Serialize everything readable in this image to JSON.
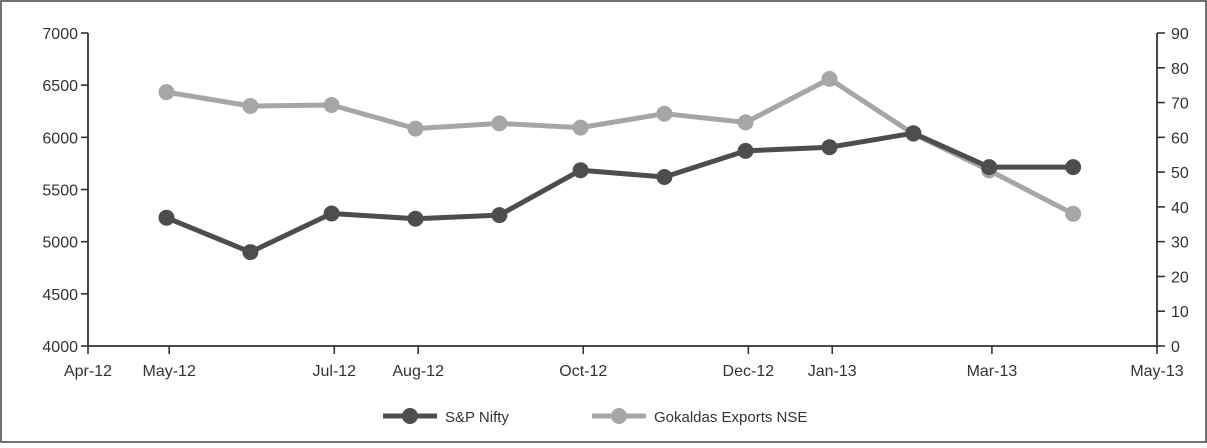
{
  "chart_data": {
    "type": "line",
    "title": "",
    "xlabel": "",
    "ylabel": "",
    "x_ticks": [
      "Apr-12",
      "May-12",
      "Jul-12",
      "Aug-12",
      "Oct-12",
      "Dec-12",
      "Jan-13",
      "Mar-13",
      "May-13"
    ],
    "x_range": [
      "2012-04-01",
      "2013-05-01"
    ],
    "y_left": {
      "range": [
        4000,
        7000
      ],
      "ticks": [
        "4000",
        "4500",
        "5000",
        "5500",
        "6000",
        "6500",
        "7000"
      ]
    },
    "y_right": {
      "range": [
        0,
        90
      ],
      "ticks": [
        "0",
        "10",
        "20",
        "30",
        "40",
        "50",
        "60",
        "70",
        "80",
        "90"
      ]
    },
    "grid": false,
    "legend": "bottom-center",
    "series": [
      {
        "name": "S&P Nifty",
        "axis": "left",
        "color": "#4d4d4d",
        "points": [
          {
            "x": "2012-04-30",
            "y": 5230
          },
          {
            "x": "2012-05-31",
            "y": 4900
          },
          {
            "x": "2012-06-30",
            "y": 5270
          },
          {
            "x": "2012-07-31",
            "y": 5220
          },
          {
            "x": "2012-08-31",
            "y": 5255
          },
          {
            "x": "2012-09-30",
            "y": 5685
          },
          {
            "x": "2012-10-31",
            "y": 5620
          },
          {
            "x": "2012-11-30",
            "y": 5870
          },
          {
            "x": "2012-12-31",
            "y": 5905
          },
          {
            "x": "2013-01-31",
            "y": 6040
          },
          {
            "x": "2013-02-28",
            "y": 5715
          },
          {
            "x": "2013-03-31",
            "y": 5715
          }
        ]
      },
      {
        "name": "Gokaldas Exports NSE",
        "axis": "right",
        "color": "#a6a6a6",
        "points": [
          {
            "x": "2012-04-30",
            "y": 73
          },
          {
            "x": "2012-05-31",
            "y": 69
          },
          {
            "x": "2012-06-30",
            "y": 69.3
          },
          {
            "x": "2012-07-31",
            "y": 62.5
          },
          {
            "x": "2012-08-31",
            "y": 64
          },
          {
            "x": "2012-09-30",
            "y": 62.8
          },
          {
            "x": "2012-10-31",
            "y": 66.8
          },
          {
            "x": "2012-11-30",
            "y": 64.3
          },
          {
            "x": "2012-12-31",
            "y": 76.8
          },
          {
            "x": "2013-01-31",
            "y": 61
          },
          {
            "x": "2013-02-28",
            "y": 50.5
          },
          {
            "x": "2013-03-31",
            "y": 38
          }
        ]
      }
    ]
  }
}
